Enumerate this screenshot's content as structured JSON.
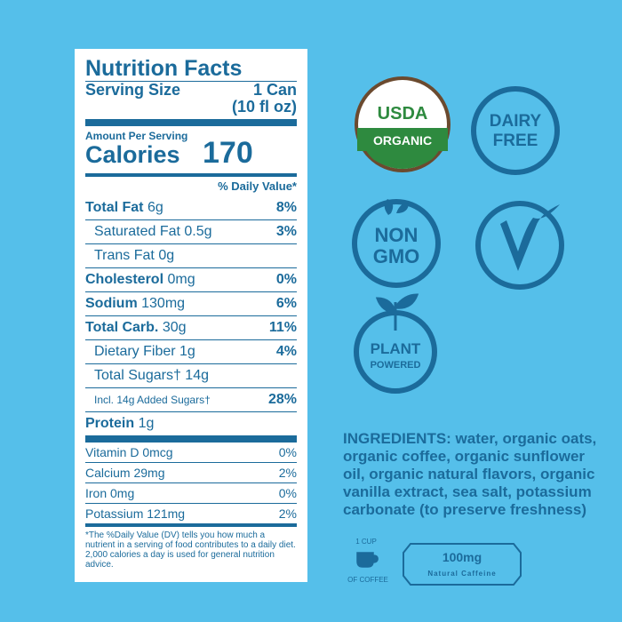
{
  "nutrition": {
    "title": "Nutrition Facts",
    "serving_size_label": "Serving Size",
    "serving_size": "1 Can",
    "serving_size_volume": "(10 fl oz)",
    "amount_per_serving": "Amount Per Serving",
    "calories_label": "Calories",
    "calories": "170",
    "daily_value_header": "% Daily Value*",
    "rows": [
      {
        "label": "Total Fat",
        "amount": "6g",
        "dv": "8%"
      },
      {
        "label": "Saturated Fat",
        "amount": "0.5g",
        "dv": "3%"
      },
      {
        "label": "Trans Fat",
        "amount": "0g"
      },
      {
        "label": "Cholesterol",
        "amount": "0mg",
        "dv": "0%"
      },
      {
        "label": "Sodium",
        "amount": "130mg",
        "dv": "6%"
      },
      {
        "label": "Total Carb.",
        "amount": "30g",
        "dv": "11%"
      },
      {
        "label": "Dietary Fiber",
        "amount": "1g",
        "dv": "4%"
      },
      {
        "label": "Total Sugars†",
        "amount": "14g"
      },
      {
        "label": "Incl. 14g Added Sugars†",
        "dv": "28%"
      },
      {
        "label": "Protein",
        "amount": "1g"
      }
    ],
    "vitamins": [
      {
        "label": "Vitamin D",
        "amount": "0mcg",
        "dv": "0%"
      },
      {
        "label": "Calcium",
        "amount": "29mg",
        "dv": "2%"
      },
      {
        "label": "Iron",
        "amount": "0mg",
        "dv": "0%"
      },
      {
        "label": "Potassium",
        "amount": "121mg",
        "dv": "2%"
      }
    ],
    "footnote": "*The %Daily Value (DV) tells you how much a nutrient in a serving of food contributes to a daily diet. 2,000 calories a day is used for general nutrition advice."
  },
  "badges": {
    "usda": "USDA",
    "organic": "ORGANIC",
    "dairy": "DAIRY",
    "free": "FREE",
    "non": "NON",
    "gmo": "GMO",
    "plant": "PLANT",
    "powered": "POWERED"
  },
  "ingredients": "INGREDIENTS: water, organic oats, organic coffee, organic sunflower oil, organic natural flavors, organic vanilla extract, sea salt, potassium carbonate (to preserve freshness)",
  "caffeine": {
    "cup_top": "1 CUP",
    "cup_bottom": "OF COFFEE",
    "amount": "100mg",
    "label": "Natural Caffeine"
  }
}
